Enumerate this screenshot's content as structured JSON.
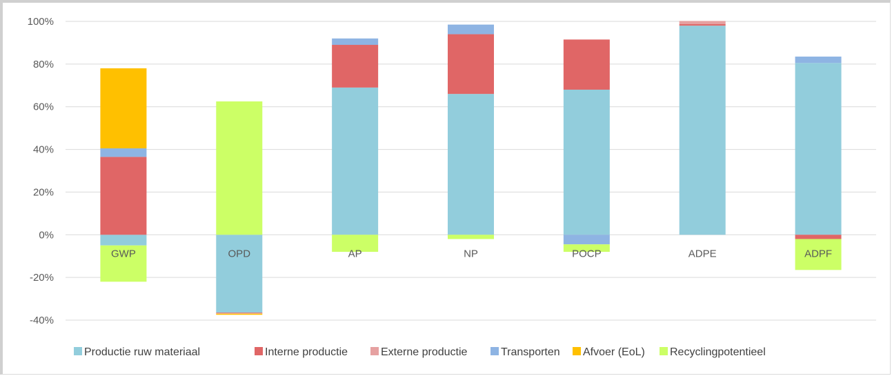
{
  "chart_data": {
    "type": "bar",
    "stacked": true,
    "categories": [
      "GWP",
      "OPD",
      "AP",
      "NP",
      "POCP",
      "ADPE",
      "ADPF"
    ],
    "ylim": [
      -40,
      100
    ],
    "yticks": [
      100,
      80,
      60,
      40,
      20,
      0,
      -20,
      -40
    ],
    "ytick_labels": [
      "100%",
      "80%",
      "60%",
      "40%",
      "20%",
      "0%",
      "-20%",
      "-40%"
    ],
    "grid": true,
    "legend_position": "bottom",
    "series": [
      {
        "name": "Productie ruw materiaal",
        "color": "#92CDDC",
        "values": [
          -5,
          -36.5,
          69,
          66,
          68,
          98,
          80.5
        ]
      },
      {
        "name": "Interne productie",
        "color": "#E06666",
        "values": [
          36.5,
          -0.3,
          20,
          28,
          23.5,
          0.7,
          -2
        ]
      },
      {
        "name": "Externe productie",
        "color": "#E6A1A1",
        "values": [
          0,
          -0.2,
          0,
          0,
          0,
          1.5,
          0
        ]
      },
      {
        "name": "Transporten",
        "color": "#8EB4E3",
        "values": [
          4,
          0,
          3,
          4.5,
          -4.5,
          0,
          3
        ]
      },
      {
        "name": "Afvoer (EoL)",
        "color": "#FFC000",
        "values": [
          37.5,
          -0.5,
          0,
          0,
          0,
          0,
          0
        ]
      },
      {
        "name": "Recyclingpotentieel",
        "color": "#CCFF66",
        "values": [
          -17,
          62.5,
          -8,
          -2,
          -3.5,
          0,
          -14.5
        ]
      }
    ]
  }
}
